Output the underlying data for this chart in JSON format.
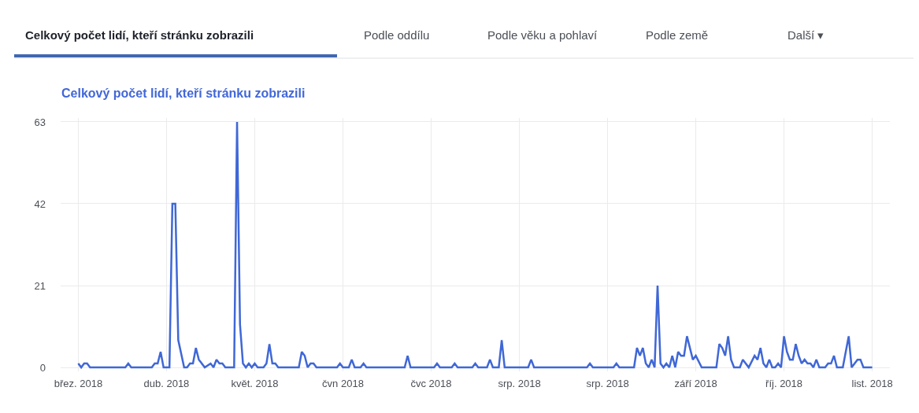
{
  "chart_data": {
    "type": "line",
    "title": "Celkový počet lidí, kteří stránku zobrazili",
    "color": "#3f67d6",
    "annotations": [
      "Celkový počet lidí, kteří stránku zobrazili",
      "Podle oddílu",
      "Podle věku a pohlaví",
      "Podle země",
      "Další ▾"
    ],
    "x": [
      "2018-03-04",
      "2018-03-05",
      "2018-03-06",
      "2018-03-07",
      "2018-03-08",
      "2018-03-20",
      "2018-03-21",
      "2018-03-22",
      "2018-03-29",
      "2018-03-30",
      "2018-03-31",
      "2018-04-01",
      "2018-04-02",
      "2018-04-04",
      "2018-04-05",
      "2018-04-06",
      "2018-04-07",
      "2018-04-09",
      "2018-04-10",
      "2018-04-11",
      "2018-04-12",
      "2018-04-13",
      "2018-04-14",
      "2018-04-16",
      "2018-04-18",
      "2018-04-19",
      "2018-04-20",
      "2018-04-21",
      "2018-04-22",
      "2018-04-23",
      "2018-04-26",
      "2018-04-27",
      "2018-04-28",
      "2018-04-29",
      "2018-04-30",
      "2018-05-01",
      "2018-05-02",
      "2018-05-03",
      "2018-05-04",
      "2018-05-06",
      "2018-05-07",
      "2018-05-08",
      "2018-05-09",
      "2018-05-10",
      "2018-05-11",
      "2018-05-18",
      "2018-05-19",
      "2018-05-20",
      "2018-05-21",
      "2018-05-22",
      "2018-05-23",
      "2018-05-24",
      "2018-05-31",
      "2018-06-01",
      "2018-06-02",
      "2018-06-04",
      "2018-06-05",
      "2018-06-06",
      "2018-06-08",
      "2018-06-09",
      "2018-06-10",
      "2018-06-23",
      "2018-06-24",
      "2018-06-25",
      "2018-07-03",
      "2018-07-04",
      "2018-07-05",
      "2018-07-09",
      "2018-07-10",
      "2018-07-11",
      "2018-07-16",
      "2018-07-17",
      "2018-07-18",
      "2018-07-21",
      "2018-07-22",
      "2018-07-23",
      "2018-07-25",
      "2018-07-26",
      "2018-07-27",
      "2018-08-04",
      "2018-08-05",
      "2018-08-06",
      "2018-08-24",
      "2018-08-25",
      "2018-08-26",
      "2018-09-02",
      "2018-09-03",
      "2018-09-04",
      "2018-09-09",
      "2018-09-10",
      "2018-09-11",
      "2018-09-12",
      "2018-09-13",
      "2018-09-14",
      "2018-09-15",
      "2018-09-16",
      "2018-09-17",
      "2018-09-18",
      "2018-09-19",
      "2018-09-20",
      "2018-09-21",
      "2018-09-22",
      "2018-09-23",
      "2018-09-24",
      "2018-09-25",
      "2018-09-26",
      "2018-09-27",
      "2018-09-29",
      "2018-09-30",
      "2018-10-02",
      "2018-10-07",
      "2018-10-08",
      "2018-10-09",
      "2018-10-10",
      "2018-10-11",
      "2018-10-12",
      "2018-10-13",
      "2018-10-15",
      "2018-10-16",
      "2018-10-18",
      "2018-10-20",
      "2018-10-21",
      "2018-10-22",
      "2018-10-23",
      "2018-10-24",
      "2018-10-25",
      "2018-10-26",
      "2018-10-27",
      "2018-10-28",
      "2018-10-29",
      "2018-10-30",
      "2018-10-31",
      "2018-11-01",
      "2018-11-02",
      "2018-11-03",
      "2018-11-04",
      "2018-11-05",
      "2018-11-06",
      "2018-11-07",
      "2018-11-08",
      "2018-11-09",
      "2018-11-10",
      "2018-11-11",
      "2018-11-13",
      "2018-11-14",
      "2018-11-15",
      "2018-11-16",
      "2018-11-17",
      "2018-11-19",
      "2018-11-21",
      "2018-11-22",
      "2018-11-24",
      "2018-11-25",
      "2018-11-26",
      "2018-11-29"
    ],
    "values": [
      1,
      0,
      1,
      1,
      0,
      0,
      1,
      0,
      0,
      1,
      1,
      4,
      0,
      0,
      42,
      42,
      7,
      0,
      0,
      1,
      1,
      5,
      2,
      0,
      1,
      0,
      2,
      1,
      1,
      0,
      0,
      63,
      11,
      1,
      0,
      1,
      0,
      1,
      0,
      0,
      1,
      6,
      1,
      1,
      0,
      0,
      4,
      3,
      0,
      1,
      1,
      0,
      0,
      1,
      0,
      0,
      2,
      0,
      0,
      1,
      0,
      0,
      3,
      0,
      0,
      1,
      0,
      0,
      1,
      0,
      0,
      1,
      0,
      0,
      2,
      0,
      0,
      7,
      0,
      0,
      2,
      0,
      0,
      1,
      0,
      0,
      1,
      0,
      0,
      5,
      3,
      5,
      1,
      0,
      2,
      0,
      21,
      1,
      0,
      1,
      0,
      3,
      0,
      4,
      3,
      3,
      8,
      2,
      3,
      0,
      0,
      6,
      5,
      3,
      8,
      2,
      0,
      0,
      2,
      0,
      3,
      2,
      5,
      1,
      0,
      2,
      0,
      0,
      1,
      0,
      8,
      4,
      2,
      2,
      6,
      3,
      1,
      2,
      1,
      1,
      0,
      2,
      0,
      0,
      1,
      1,
      3,
      0,
      0,
      8,
      0,
      2,
      2,
      0,
      0
    ],
    "xlim": [
      "2018-02-26",
      "2018-12-05"
    ],
    "xticks": [
      {
        "value": "2018-03-04",
        "label": "břez. 2018"
      },
      {
        "value": "2018-04-03",
        "label": "dub. 2018"
      },
      {
        "value": "2018-05-03",
        "label": "květ. 2018"
      },
      {
        "value": "2018-06-02",
        "label": "čvn 2018"
      },
      {
        "value": "2018-07-02",
        "label": "čvc 2018"
      },
      {
        "value": "2018-08-01",
        "label": "srp. 2018"
      },
      {
        "value": "2018-08-31",
        "label": "srp. 2018"
      },
      {
        "value": "2018-09-30",
        "label": "září 2018"
      },
      {
        "value": "2018-10-30",
        "label": "říj. 2018"
      },
      {
        "value": "2018-11-29",
        "label": "list. 2018"
      }
    ],
    "ylim": [
      -1,
      64
    ],
    "yticks": [
      0,
      21,
      42,
      63
    ],
    "grid": true,
    "marker": "none",
    "line_style": "solid"
  }
}
